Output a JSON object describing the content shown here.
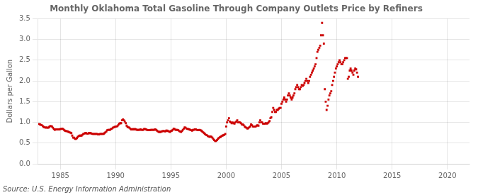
{
  "chart_data": {
    "type": "scatter",
    "title": "Monthly Oklahoma Total Gasoline Through Company Outlets Price by Refiners",
    "ylabel": "Dollars per Gallon",
    "annotations": [
      "Source: U.S. Energy Information Administration"
    ],
    "color": "#cc0000",
    "marker": "square",
    "grid": true,
    "xlim": [
      1983,
      2022
    ],
    "ylim": [
      0.0,
      3.5
    ],
    "xticks": [
      1985,
      1990,
      1995,
      2000,
      2005,
      2010,
      2015,
      2020
    ],
    "yticks": [
      {
        "value": 0.0,
        "label": "0.0"
      },
      0.5,
      {
        "value": 1.0,
        "label": "1.0"
      },
      1.5,
      {
        "value": 2.0,
        "label": "2.0"
      },
      2.5,
      {
        "value": 3.0,
        "label": "3.0"
      },
      3.5
    ],
    "x": [
      1983.08,
      1983.17,
      1983.25,
      1983.33,
      1983.42,
      1983.5,
      1983.58,
      1983.67,
      1983.75,
      1983.83,
      1983.92,
      1984.0,
      1984.08,
      1984.17,
      1984.25,
      1984.33,
      1984.42,
      1984.5,
      1984.58,
      1984.67,
      1984.75,
      1984.83,
      1984.92,
      1985.0,
      1985.08,
      1985.17,
      1985.25,
      1985.33,
      1985.42,
      1985.5,
      1985.58,
      1985.67,
      1985.75,
      1985.83,
      1985.92,
      1986.0,
      1986.08,
      1986.17,
      1986.25,
      1986.33,
      1986.42,
      1986.5,
      1986.58,
      1986.67,
      1986.75,
      1986.83,
      1986.92,
      1987.0,
      1987.08,
      1987.17,
      1987.25,
      1987.33,
      1987.42,
      1987.5,
      1987.58,
      1987.67,
      1987.75,
      1987.83,
      1987.92,
      1988.0,
      1988.08,
      1988.17,
      1988.25,
      1988.33,
      1988.42,
      1988.5,
      1988.58,
      1988.67,
      1988.75,
      1988.83,
      1988.92,
      1989.0,
      1989.08,
      1989.17,
      1989.25,
      1989.33,
      1989.42,
      1989.5,
      1989.58,
      1989.67,
      1989.75,
      1989.83,
      1989.92,
      1990.0,
      1990.08,
      1990.17,
      1990.25,
      1990.33,
      1990.42,
      1990.5,
      1990.58,
      1990.67,
      1990.75,
      1990.83,
      1990.92,
      1991.0,
      1991.08,
      1991.17,
      1991.25,
      1991.33,
      1991.42,
      1991.5,
      1991.58,
      1991.67,
      1991.75,
      1991.83,
      1991.92,
      1992.0,
      1992.08,
      1992.17,
      1992.25,
      1992.33,
      1992.42,
      1992.5,
      1992.58,
      1992.67,
      1992.75,
      1992.83,
      1992.92,
      1993.0,
      1993.08,
      1993.17,
      1993.25,
      1993.33,
      1993.42,
      1993.5,
      1993.58,
      1993.67,
      1993.75,
      1993.83,
      1993.92,
      1994.0,
      1994.08,
      1994.17,
      1994.25,
      1994.33,
      1994.42,
      1994.5,
      1994.58,
      1994.67,
      1994.75,
      1994.83,
      1994.92,
      1995.0,
      1995.08,
      1995.17,
      1995.25,
      1995.33,
      1995.42,
      1995.5,
      1995.58,
      1995.67,
      1995.75,
      1995.83,
      1995.92,
      1996.0,
      1996.08,
      1996.17,
      1996.25,
      1996.33,
      1996.42,
      1996.5,
      1996.58,
      1996.67,
      1996.75,
      1996.83,
      1996.92,
      1997.0,
      1997.08,
      1997.17,
      1997.25,
      1997.33,
      1997.42,
      1997.5,
      1997.58,
      1997.67,
      1997.75,
      1997.83,
      1997.92,
      1998.0,
      1998.08,
      1998.17,
      1998.25,
      1998.33,
      1998.42,
      1998.5,
      1998.58,
      1998.67,
      1998.75,
      1998.83,
      1998.92,
      1999.0,
      1999.08,
      1999.17,
      1999.25,
      1999.33,
      1999.42,
      1999.5,
      1999.58,
      1999.67,
      1999.75,
      1999.83,
      1999.92,
      2000.0,
      2000.08,
      2000.17,
      2000.25,
      2000.33,
      2000.42,
      2000.5,
      2000.58,
      2000.67,
      2000.75,
      2000.83,
      2000.92,
      2001.0,
      2001.08,
      2001.17,
      2001.25,
      2001.33,
      2001.42,
      2001.5,
      2001.58,
      2001.67,
      2001.75,
      2001.83,
      2001.92,
      2002.0,
      2002.08,
      2002.17,
      2002.25,
      2002.33,
      2002.42,
      2002.5,
      2002.58,
      2002.67,
      2002.75,
      2002.83,
      2002.92,
      2003.0,
      2003.08,
      2003.17,
      2003.25,
      2003.33,
      2003.42,
      2003.5,
      2003.58,
      2003.67,
      2003.75,
      2003.83,
      2003.92,
      2004.0,
      2004.08,
      2004.17,
      2004.25,
      2004.33,
      2004.42,
      2004.5,
      2004.58,
      2004.67,
      2004.75,
      2004.83,
      2004.92,
      2005.0,
      2005.08,
      2005.17,
      2005.25,
      2005.33,
      2005.42,
      2005.5,
      2005.58,
      2005.67,
      2005.75,
      2005.83,
      2005.92,
      2006.0,
      2006.08,
      2006.17,
      2006.25,
      2006.33,
      2006.42,
      2006.5,
      2006.58,
      2006.67,
      2006.75,
      2006.83,
      2006.92,
      2007.0,
      2007.08,
      2007.17,
      2007.25,
      2007.33,
      2007.42,
      2007.5,
      2007.58,
      2007.67,
      2007.75,
      2007.83,
      2007.92,
      2008.0,
      2008.08,
      2008.17,
      2008.25,
      2008.33,
      2008.42,
      2008.5,
      2008.58,
      2008.67,
      2008.75,
      2008.83,
      2008.92,
      2009.0,
      2009.08,
      2009.17,
      2009.25,
      2009.33,
      2009.42,
      2009.5,
      2009.58,
      2009.67,
      2009.75,
      2009.83,
      2009.92,
      2010.0,
      2010.08,
      2010.17,
      2010.25,
      2010.33,
      2010.42,
      2010.5,
      2010.58,
      2010.67,
      2010.75,
      2010.83,
      2010.92,
      2011.0,
      2011.08,
      2011.17,
      2011.25,
      2011.33,
      2011.42,
      2011.5,
      2011.58,
      2011.67,
      2011.75,
      2011.83,
      2011.92
    ],
    "values": [
      0.96,
      0.95,
      0.94,
      0.93,
      0.91,
      0.89,
      0.88,
      0.87,
      0.88,
      0.87,
      0.87,
      0.89,
      0.91,
      0.91,
      0.9,
      0.87,
      0.84,
      0.82,
      0.83,
      0.83,
      0.83,
      0.83,
      0.83,
      0.84,
      0.84,
      0.85,
      0.84,
      0.82,
      0.8,
      0.79,
      0.79,
      0.78,
      0.77,
      0.76,
      0.75,
      0.74,
      0.68,
      0.63,
      0.63,
      0.6,
      0.6,
      0.62,
      0.65,
      0.67,
      0.68,
      0.68,
      0.68,
      0.7,
      0.72,
      0.73,
      0.74,
      0.74,
      0.73,
      0.73,
      0.74,
      0.74,
      0.74,
      0.73,
      0.72,
      0.72,
      0.72,
      0.72,
      0.72,
      0.72,
      0.71,
      0.71,
      0.72,
      0.72,
      0.72,
      0.72,
      0.72,
      0.74,
      0.76,
      0.78,
      0.81,
      0.82,
      0.82,
      0.82,
      0.84,
      0.85,
      0.87,
      0.88,
      0.89,
      0.9,
      0.9,
      0.91,
      0.94,
      0.97,
      0.98,
      0.98,
      1.05,
      1.07,
      1.05,
      1.02,
      0.98,
      0.92,
      0.89,
      0.88,
      0.87,
      0.85,
      0.83,
      0.83,
      0.84,
      0.83,
      0.84,
      0.83,
      0.82,
      0.82,
      0.82,
      0.82,
      0.83,
      0.82,
      0.82,
      0.82,
      0.84,
      0.84,
      0.83,
      0.82,
      0.81,
      0.81,
      0.81,
      0.82,
      0.82,
      0.82,
      0.82,
      0.82,
      0.83,
      0.82,
      0.8,
      0.78,
      0.77,
      0.77,
      0.77,
      0.78,
      0.79,
      0.79,
      0.79,
      0.78,
      0.8,
      0.8,
      0.79,
      0.78,
      0.77,
      0.79,
      0.8,
      0.82,
      0.85,
      0.84,
      0.82,
      0.82,
      0.82,
      0.81,
      0.79,
      0.78,
      0.77,
      0.79,
      0.82,
      0.85,
      0.88,
      0.87,
      0.85,
      0.84,
      0.84,
      0.83,
      0.82,
      0.81,
      0.8,
      0.82,
      0.82,
      0.83,
      0.83,
      0.82,
      0.81,
      0.81,
      0.82,
      0.81,
      0.8,
      0.78,
      0.76,
      0.74,
      0.72,
      0.7,
      0.69,
      0.67,
      0.66,
      0.65,
      0.66,
      0.65,
      0.63,
      0.6,
      0.57,
      0.55,
      0.55,
      0.57,
      0.6,
      0.62,
      0.64,
      0.65,
      0.67,
      0.68,
      0.69,
      0.7,
      0.72,
      0.9,
      1.0,
      1.05,
      1.1,
      1.02,
      1.0,
      0.98,
      1.0,
      0.98,
      0.97,
      1.0,
      1.02,
      1.05,
      1.0,
      1.0,
      1.0,
      0.98,
      0.95,
      0.95,
      0.93,
      0.9,
      0.88,
      0.87,
      0.85,
      0.86,
      0.88,
      0.9,
      0.95,
      0.93,
      0.9,
      0.9,
      0.9,
      0.9,
      0.92,
      0.93,
      0.92,
      1.0,
      1.05,
      1.0,
      1.0,
      0.97,
      0.97,
      0.97,
      0.98,
      0.97,
      0.98,
      1.0,
      1.03,
      1.1,
      1.12,
      1.25,
      1.35,
      1.3,
      1.25,
      1.25,
      1.3,
      1.3,
      1.33,
      1.35,
      1.35,
      1.45,
      1.5,
      1.55,
      1.6,
      1.55,
      1.5,
      1.55,
      1.65,
      1.7,
      1.65,
      1.6,
      1.55,
      1.6,
      1.65,
      1.7,
      1.8,
      1.85,
      1.9,
      1.85,
      1.8,
      1.8,
      1.85,
      1.9,
      1.88,
      1.9,
      1.95,
      2.0,
      2.05,
      2.0,
      1.95,
      2.0,
      2.1,
      2.15,
      2.2,
      2.25,
      2.3,
      2.35,
      2.4,
      2.55,
      2.7,
      2.75,
      2.8,
      2.85,
      3.1,
      3.4,
      3.1,
      2.9,
      1.8,
      1.5,
      1.3,
      1.4,
      1.55,
      1.65,
      1.7,
      1.75,
      1.9,
      2.0,
      2.1,
      2.2,
      2.3,
      2.35,
      2.4,
      2.45,
      2.5,
      2.45,
      2.4,
      2.4,
      2.45,
      2.5,
      2.55,
      2.55,
      2.55,
      2.05,
      2.1,
      2.25,
      2.3,
      2.25,
      2.2,
      2.15,
      2.25,
      2.3,
      2.28,
      2.2,
      2.1
    ]
  }
}
